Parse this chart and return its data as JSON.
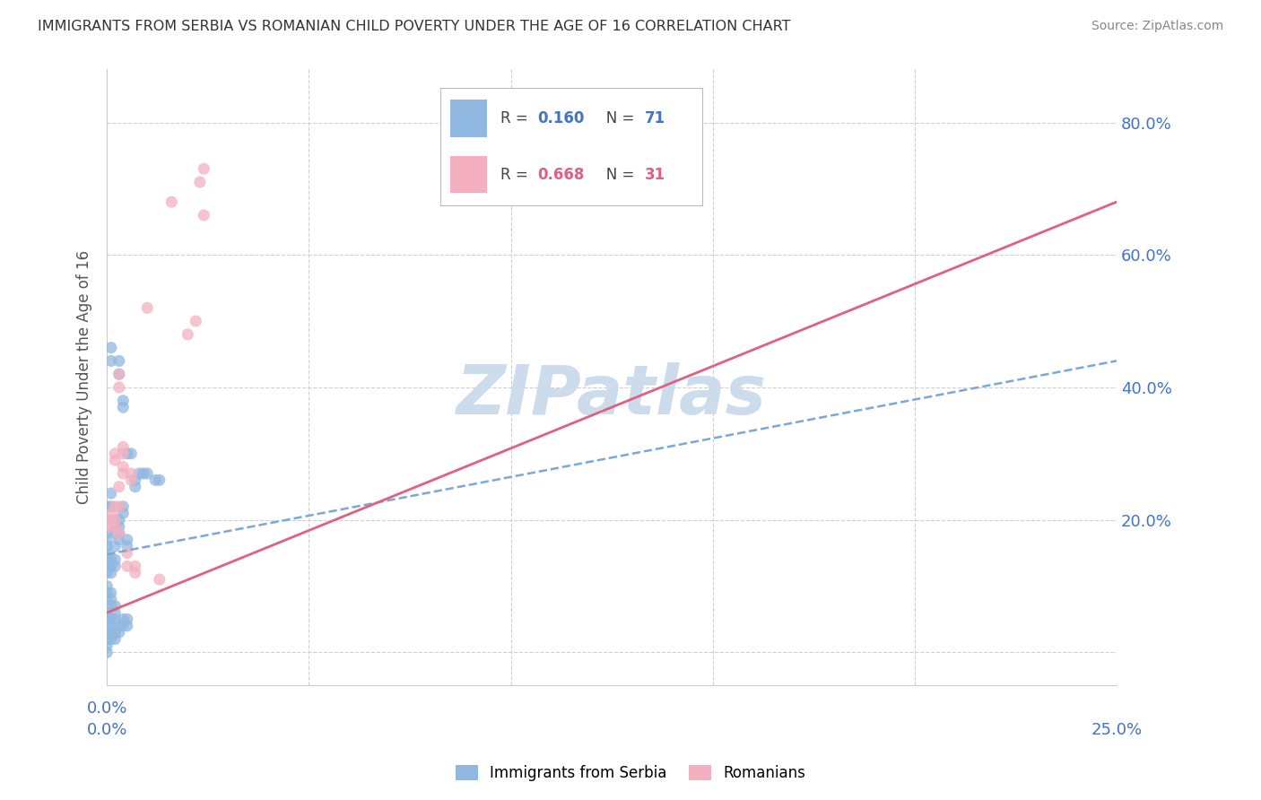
{
  "title": "IMMIGRANTS FROM SERBIA VS ROMANIAN CHILD POVERTY UNDER THE AGE OF 16 CORRELATION CHART",
  "source": "Source: ZipAtlas.com",
  "ylabel": "Child Poverty Under the Age of 16",
  "ytick_labels": [
    "",
    "20.0%",
    "40.0%",
    "60.0%",
    "80.0%"
  ],
  "ytick_values": [
    0.0,
    0.2,
    0.4,
    0.6,
    0.8
  ],
  "xlim": [
    0.0,
    0.25
  ],
  "ylim": [
    -0.05,
    0.88
  ],
  "legend_r1": "R = ",
  "legend_v1": "0.160",
  "legend_n1": "N = ",
  "legend_n1v": "71",
  "legend_r2": "R = ",
  "legend_v2": "0.668",
  "legend_n2": "N = ",
  "legend_n2v": "31",
  "serbia_scatter": [
    [
      0.0,
      0.2
    ],
    [
      0.0,
      0.22
    ],
    [
      0.0,
      0.18
    ],
    [
      0.0,
      0.17
    ],
    [
      0.0,
      0.15
    ],
    [
      0.0,
      0.16
    ],
    [
      0.0,
      0.14
    ],
    [
      0.0,
      0.13
    ],
    [
      0.0,
      0.12
    ],
    [
      0.0,
      0.1
    ],
    [
      0.0,
      0.09
    ],
    [
      0.0,
      0.08
    ],
    [
      0.0,
      0.06
    ],
    [
      0.0,
      0.05
    ],
    [
      0.0,
      0.04
    ],
    [
      0.0,
      0.03
    ],
    [
      0.0,
      0.02
    ],
    [
      0.0,
      0.01
    ],
    [
      0.0,
      0.0
    ],
    [
      0.003,
      0.44
    ],
    [
      0.003,
      0.42
    ],
    [
      0.004,
      0.38
    ],
    [
      0.004,
      0.37
    ],
    [
      0.005,
      0.3
    ],
    [
      0.003,
      0.2
    ],
    [
      0.003,
      0.19
    ],
    [
      0.003,
      0.18
    ],
    [
      0.003,
      0.17
    ],
    [
      0.004,
      0.22
    ],
    [
      0.004,
      0.21
    ],
    [
      0.006,
      0.3
    ],
    [
      0.007,
      0.25
    ],
    [
      0.001,
      0.44
    ],
    [
      0.001,
      0.46
    ],
    [
      0.001,
      0.22
    ],
    [
      0.001,
      0.24
    ],
    [
      0.001,
      0.14
    ],
    [
      0.001,
      0.13
    ],
    [
      0.001,
      0.12
    ],
    [
      0.001,
      0.09
    ],
    [
      0.001,
      0.08
    ],
    [
      0.001,
      0.07
    ],
    [
      0.001,
      0.05
    ],
    [
      0.001,
      0.04
    ],
    [
      0.001,
      0.03
    ],
    [
      0.001,
      0.02
    ],
    [
      0.002,
      0.2
    ],
    [
      0.002,
      0.19
    ],
    [
      0.002,
      0.18
    ],
    [
      0.002,
      0.16
    ],
    [
      0.002,
      0.14
    ],
    [
      0.002,
      0.13
    ],
    [
      0.002,
      0.07
    ],
    [
      0.002,
      0.06
    ],
    [
      0.002,
      0.05
    ],
    [
      0.002,
      0.03
    ],
    [
      0.002,
      0.02
    ],
    [
      0.003,
      0.03
    ],
    [
      0.003,
      0.04
    ],
    [
      0.004,
      0.05
    ],
    [
      0.004,
      0.04
    ],
    [
      0.005,
      0.17
    ],
    [
      0.005,
      0.16
    ],
    [
      0.005,
      0.05
    ],
    [
      0.005,
      0.04
    ],
    [
      0.007,
      0.26
    ],
    [
      0.008,
      0.27
    ],
    [
      0.009,
      0.27
    ],
    [
      0.01,
      0.27
    ],
    [
      0.012,
      0.26
    ],
    [
      0.013,
      0.26
    ]
  ],
  "romania_scatter": [
    [
      0.001,
      0.2
    ],
    [
      0.001,
      0.21
    ],
    [
      0.001,
      0.19
    ],
    [
      0.002,
      0.2
    ],
    [
      0.002,
      0.19
    ],
    [
      0.002,
      0.22
    ],
    [
      0.002,
      0.3
    ],
    [
      0.002,
      0.29
    ],
    [
      0.003,
      0.18
    ],
    [
      0.003,
      0.22
    ],
    [
      0.003,
      0.25
    ],
    [
      0.003,
      0.42
    ],
    [
      0.003,
      0.4
    ],
    [
      0.004,
      0.28
    ],
    [
      0.004,
      0.27
    ],
    [
      0.004,
      0.3
    ],
    [
      0.004,
      0.31
    ],
    [
      0.005,
      0.13
    ],
    [
      0.005,
      0.15
    ],
    [
      0.006,
      0.26
    ],
    [
      0.006,
      0.27
    ],
    [
      0.007,
      0.12
    ],
    [
      0.007,
      0.13
    ],
    [
      0.01,
      0.52
    ],
    [
      0.013,
      0.11
    ],
    [
      0.016,
      0.68
    ],
    [
      0.02,
      0.48
    ],
    [
      0.022,
      0.5
    ],
    [
      0.023,
      0.71
    ],
    [
      0.024,
      0.66
    ],
    [
      0.024,
      0.73
    ]
  ],
  "serbia_line_x": [
    0.0,
    0.25
  ],
  "serbia_line_y": [
    0.148,
    0.44
  ],
  "romania_line_x": [
    0.0,
    0.25
  ],
  "romania_line_y": [
    0.06,
    0.68
  ],
  "scatter_serbia_color": "#90b8e0",
  "scatter_romania_color": "#f4b0c0",
  "scatter_serbia_edge": "#90b8e0",
  "scatter_romania_edge": "#f4b0c0",
  "scatter_alpha": 0.75,
  "scatter_size": 90,
  "trend_serbia_color": "#7aa8d8",
  "trend_romania_color": "#e06080",
  "grid_color": "#d0d0d0",
  "title_color": "#333333",
  "axis_color": "#4472c4",
  "source_color": "#888888",
  "watermark": "ZIPatlas",
  "watermark_color": "#ccdcec",
  "watermark_fontsize": 55,
  "ylabel_color": "#555555",
  "legend_color1": "#4472c4",
  "legend_color2": "#e06080",
  "footer_label1": "Immigrants from Serbia",
  "footer_label2": "Romanians"
}
